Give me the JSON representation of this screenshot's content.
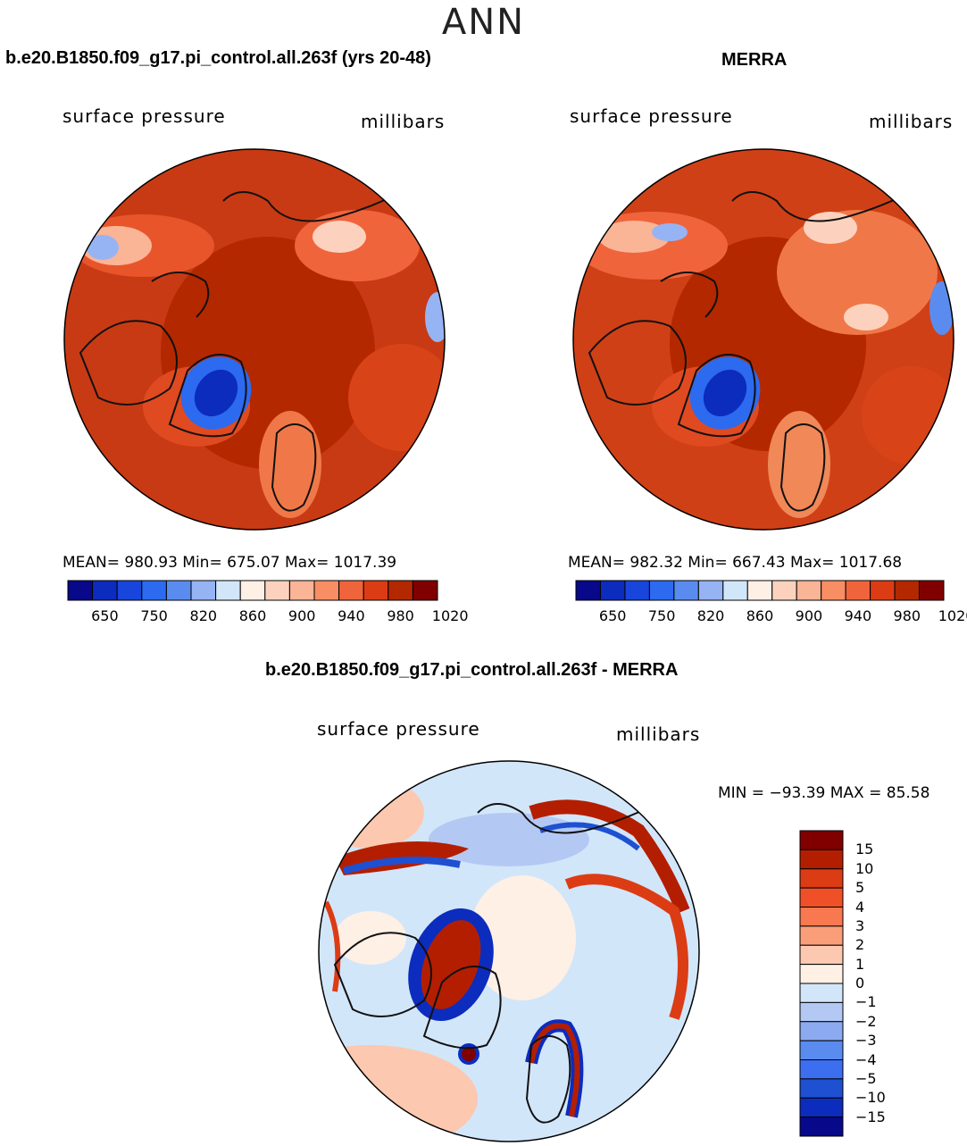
{
  "title": "ANN",
  "panels": [
    {
      "case_name": "b.e20.B1850.f09_g17.pi_control.all.263f (yrs 20-48)",
      "variable": "surface pressure",
      "units": "millibars",
      "stats": "MEAN= 980.93   Min= 675.07   Max= 1017.39"
    },
    {
      "case_name": "MERRA",
      "variable": "surface pressure",
      "units": "millibars",
      "stats": "MEAN= 982.32   Min= 667.43   Max= 1017.68"
    }
  ],
  "diff_panel": {
    "case_name": "b.e20.B1850.f09_g17.pi_control.all.263f - MERRA",
    "variable": "surface pressure",
    "units": "millibars",
    "stats": "MIN = −93.39  MAX =   85.58"
  },
  "colorbar_main": {
    "colors": [
      "#08088a",
      "#0c2cbe",
      "#1846dc",
      "#2c6af0",
      "#5a8cf0",
      "#96b4f4",
      "#d2e6fa",
      "#fff0e6",
      "#fcd2be",
      "#fab496",
      "#f88e64",
      "#f0643c",
      "#dc3c14",
      "#b42800",
      "#800000"
    ],
    "tick_labels": [
      "650",
      "750",
      "820",
      "860",
      "900",
      "940",
      "980",
      "1020"
    ]
  },
  "colorbar_diff": {
    "colors": [
      "#800000",
      "#b41e00",
      "#dc3c14",
      "#f05028",
      "#f87850",
      "#fa9e7a",
      "#fcc8b0",
      "#fff0e6",
      "#d2e6fa",
      "#b4c8f4",
      "#8caaf0",
      "#5a8cf0",
      "#3c6ef0",
      "#1e50d2",
      "#0c2cbe",
      "#08088a"
    ],
    "tick_labels": [
      "15",
      "10",
      "5",
      "4",
      "3",
      "2",
      "1",
      "0",
      "−1",
      "−2",
      "−3",
      "−4",
      "−5",
      "−10",
      "−15"
    ]
  }
}
